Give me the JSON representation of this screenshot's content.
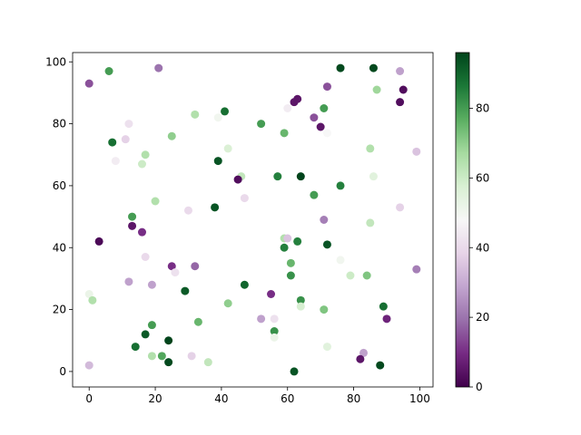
{
  "chart_data": {
    "type": "scatter",
    "x": [
      0,
      6,
      21,
      76,
      86,
      94,
      87,
      95,
      72,
      62,
      63,
      94,
      60,
      71,
      41,
      32,
      39,
      68,
      12,
      52,
      70,
      59,
      72,
      25,
      11,
      7,
      42,
      85,
      99,
      17,
      8,
      16,
      39,
      57,
      64,
      46,
      86,
      45,
      76,
      68,
      47,
      20,
      38,
      30,
      94,
      13,
      71,
      85,
      13,
      16,
      3,
      59,
      60,
      63,
      59,
      72,
      76,
      17,
      61,
      25,
      32,
      99,
      26,
      79,
      84,
      61,
      12,
      19,
      47,
      29,
      0,
      55,
      1,
      64,
      42,
      64,
      89,
      71,
      0,
      52,
      56,
      90,
      19,
      33,
      56,
      56,
      17,
      24,
      14,
      72,
      19,
      22,
      31,
      83,
      82,
      24,
      36,
      88,
      62
    ],
    "values": [
      93,
      97,
      98,
      98,
      98,
      97,
      91,
      91,
      92,
      87,
      88,
      87,
      85,
      85,
      84,
      83,
      82,
      82,
      80,
      80,
      79,
      77,
      77,
      76,
      75,
      74,
      72,
      72,
      71,
      70,
      68,
      67,
      68,
      63,
      63,
      63,
      63,
      62,
      60,
      57,
      56,
      55,
      53,
      52,
      53,
      50,
      49,
      48,
      47,
      45,
      42,
      43,
      43,
      42,
      40,
      41,
      36,
      37,
      35,
      34,
      34,
      33,
      32,
      31,
      31,
      31,
      29,
      28,
      28,
      26,
      25,
      25,
      23,
      23,
      22,
      21,
      21,
      20,
      2,
      17,
      17,
      17,
      15,
      16,
      13,
      11,
      12,
      10,
      8,
      8,
      5,
      5,
      5,
      6,
      4,
      3,
      3,
      2,
      0
    ],
    "color_values": [
      15,
      80,
      20,
      95,
      95,
      28,
      68,
      3,
      15,
      5,
      5,
      3,
      45,
      80,
      88,
      65,
      50,
      15,
      42,
      80,
      5,
      75,
      48,
      70,
      38,
      88,
      57,
      65,
      35,
      65,
      45,
      60,
      93,
      85,
      96,
      62,
      55,
      3,
      85,
      80,
      40,
      65,
      93,
      40,
      38,
      80,
      22,
      62,
      5,
      10,
      2,
      65,
      35,
      85,
      85,
      93,
      50,
      40,
      75,
      10,
      18,
      22,
      42,
      60,
      72,
      82,
      28,
      28,
      90,
      92,
      52,
      10,
      65,
      82,
      70,
      58,
      88,
      72,
      33,
      28,
      42,
      8,
      80,
      75,
      82,
      52,
      92,
      96,
      88,
      55,
      65,
      78,
      38,
      28,
      5,
      95,
      62,
      95,
      93
    ],
    "xlim": [
      -5,
      104
    ],
    "ylim": [
      -5,
      103
    ],
    "xticks": [
      0,
      20,
      40,
      60,
      80,
      100
    ],
    "yticks": [
      0,
      20,
      40,
      60,
      80,
      100
    ],
    "clim": [
      0,
      96
    ],
    "cticks": [
      0,
      20,
      40,
      60,
      80
    ],
    "colormap": [
      "#40004b",
      "#762a83",
      "#9970ab",
      "#c2a5cf",
      "#e7d4e8",
      "#f7f7f7",
      "#d9f0d3",
      "#a6dba0",
      "#5aae61",
      "#1b7837",
      "#00441b"
    ]
  }
}
